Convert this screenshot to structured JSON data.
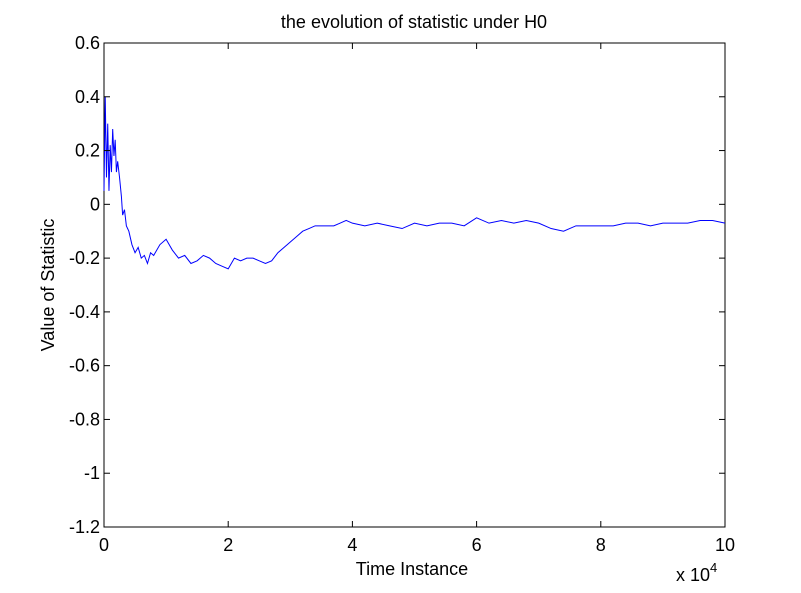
{
  "chart_data": {
    "type": "line",
    "title": "the evolution of statistic under H0",
    "xlabel": "Time Instance",
    "ylabel": "Value of Statistic",
    "x_multiplier": "x 10",
    "x_multiplier_exponent": "4",
    "xlim": [
      0,
      10
    ],
    "ylim": [
      -1.2,
      0.6
    ],
    "xticks": [
      "0",
      "2",
      "4",
      "6",
      "8",
      "10"
    ],
    "yticks": [
      "0.6",
      "0.4",
      "0.2",
      "0",
      "-0.2",
      "-0.4",
      "-0.6",
      "-0.8",
      "-1",
      "-1.2"
    ],
    "xtick_values": [
      0,
      2,
      4,
      6,
      8,
      10
    ],
    "ytick_values": [
      0.6,
      0.4,
      0.2,
      0,
      -0.2,
      -0.4,
      -0.6,
      -0.8,
      -1,
      -1.2
    ],
    "grid": false,
    "series": [
      {
        "color": "#0000ff",
        "x": [
          0,
          0.02,
          0.04,
          0.06,
          0.08,
          0.1,
          0.12,
          0.14,
          0.16,
          0.18,
          0.2,
          0.22,
          0.25,
          0.28,
          0.3,
          0.33,
          0.36,
          0.4,
          0.45,
          0.5,
          0.55,
          0.6,
          0.65,
          0.7,
          0.75,
          0.8,
          0.9,
          1.0,
          1.1,
          1.2,
          1.3,
          1.4,
          1.5,
          1.6,
          1.7,
          1.8,
          1.9,
          2.0,
          2.1,
          2.2,
          2.3,
          2.4,
          2.5,
          2.6,
          2.7,
          2.8,
          2.9,
          3.0,
          3.1,
          3.2,
          3.3,
          3.4,
          3.5,
          3.6,
          3.7,
          3.8,
          3.9,
          4.0,
          4.2,
          4.4,
          4.6,
          4.8,
          5.0,
          5.2,
          5.4,
          5.6,
          5.8,
          6.0,
          6.2,
          6.4,
          6.6,
          6.8,
          7.0,
          7.2,
          7.4,
          7.6,
          7.8,
          8.0,
          8.2,
          8.4,
          8.6,
          8.8,
          9.0,
          9.2,
          9.4,
          9.6,
          9.8,
          10.0
        ],
        "y": [
          0.05,
          0.4,
          0.1,
          0.3,
          0.05,
          0.22,
          0.12,
          0.28,
          0.18,
          0.24,
          0.12,
          0.16,
          0.1,
          0.03,
          -0.04,
          -0.02,
          -0.08,
          -0.1,
          -0.15,
          -0.18,
          -0.16,
          -0.2,
          -0.19,
          -0.22,
          -0.18,
          -0.19,
          -0.15,
          -0.13,
          -0.17,
          -0.2,
          -0.19,
          -0.22,
          -0.21,
          -0.19,
          -0.2,
          -0.22,
          -0.23,
          -0.24,
          -0.2,
          -0.21,
          -0.2,
          -0.2,
          -0.21,
          -0.22,
          -0.21,
          -0.18,
          -0.16,
          -0.14,
          -0.12,
          -0.1,
          -0.09,
          -0.08,
          -0.08,
          -0.08,
          -0.08,
          -0.07,
          -0.06,
          -0.07,
          -0.08,
          -0.07,
          -0.08,
          -0.09,
          -0.07,
          -0.08,
          -0.07,
          -0.07,
          -0.08,
          -0.05,
          -0.07,
          -0.06,
          -0.07,
          -0.06,
          -0.07,
          -0.09,
          -0.1,
          -0.08,
          -0.08,
          -0.08,
          -0.08,
          -0.07,
          -0.07,
          -0.08,
          -0.07,
          -0.07,
          -0.07,
          -0.06,
          -0.06,
          -0.07
        ]
      }
    ]
  }
}
